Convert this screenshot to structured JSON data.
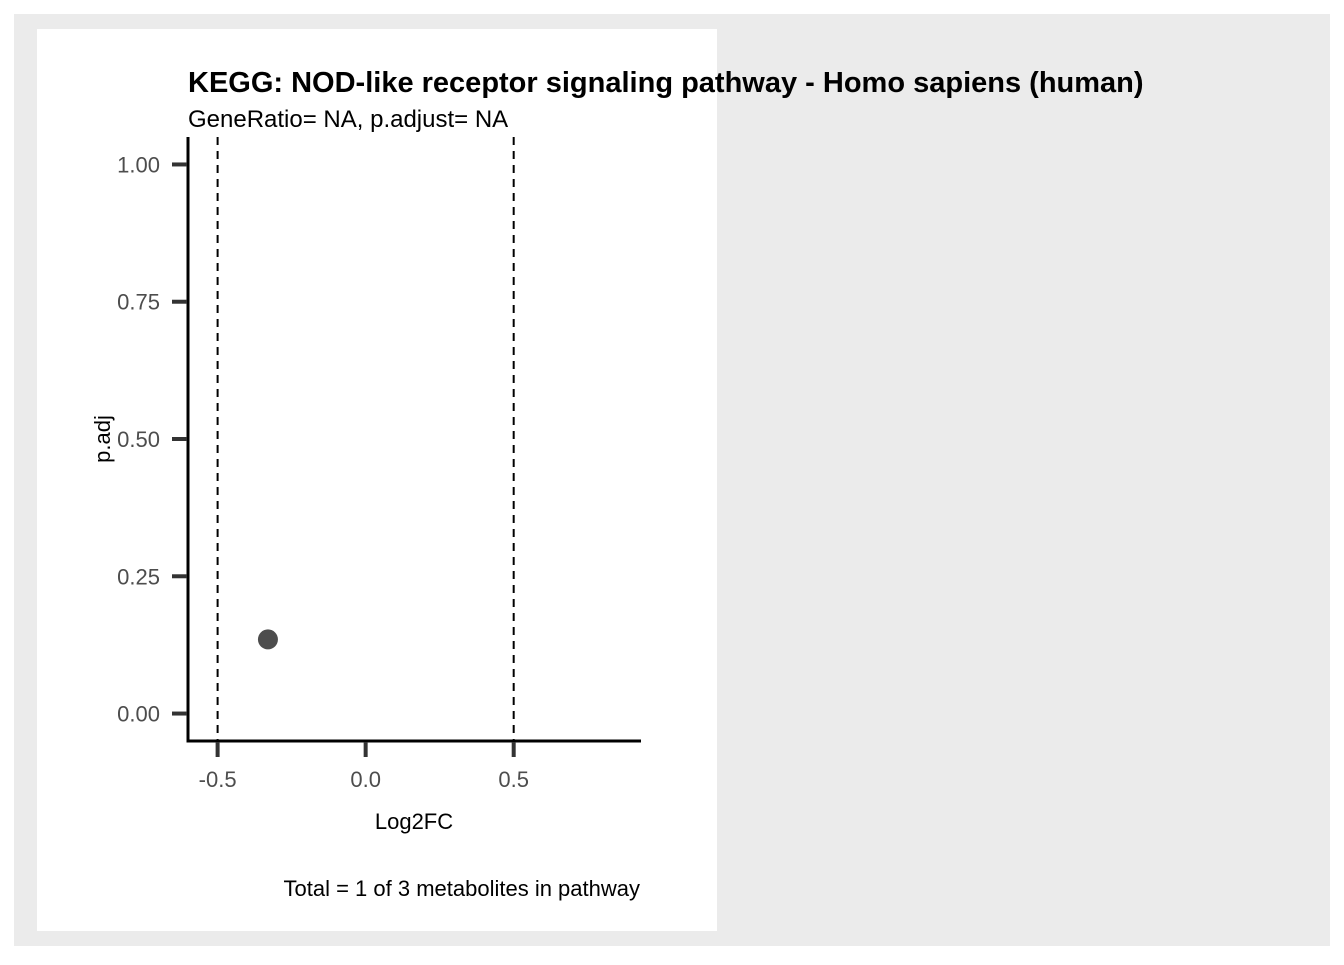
{
  "chart_data": {
    "type": "scatter",
    "title": "KEGG: NOD-like receptor signaling pathway - Homo sapiens (human)",
    "subtitle": "GeneRatio= NA, p.adjust= NA",
    "xlabel": "Log2FC",
    "ylabel": "p.adj",
    "caption": "Total = 1 of 3 metabolites in pathway",
    "xlim": [
      -0.6,
      0.93
    ],
    "ylim": [
      -0.05,
      1.05
    ],
    "x_ticks": [
      -0.5,
      0.0,
      0.5
    ],
    "x_tick_labels": [
      "-0.5",
      "0.0",
      "0.5"
    ],
    "y_ticks": [
      0.0,
      0.25,
      0.5,
      0.75,
      1.0
    ],
    "y_tick_labels": [
      "0.00",
      "0.25",
      "0.50",
      "0.75",
      "1.00"
    ],
    "reference_lines_x": [
      -0.5,
      0.5
    ],
    "reference_line_style": "dashed",
    "points": [
      {
        "x": -0.33,
        "y": 0.135
      }
    ],
    "grid": false,
    "legend": "none",
    "colors": {
      "outer_background": "#ebebeb",
      "panel_background": "#ffffff",
      "point": "#4d4d4d",
      "axis": "#000000",
      "tick_mark": "#333333",
      "tick_label": "#4d4d4d"
    }
  }
}
